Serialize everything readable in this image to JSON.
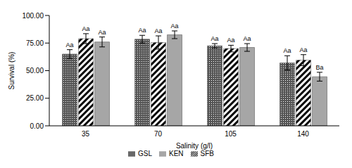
{
  "chart_data": {
    "type": "bar",
    "x_label": "Salinity (g/l)",
    "y_label": "Survival (%)",
    "categories": [
      "35",
      "70",
      "105",
      "140"
    ],
    "series": [
      {
        "name": "GSL",
        "color": "#555555",
        "values": [
          65,
          78.5,
          72.5,
          57
        ],
        "errors": [
          4,
          3.5,
          2,
          6.5
        ],
        "annotations": [
          "Aa",
          "Aa",
          "Aa",
          "Aa"
        ]
      },
      {
        "name": "SFB",
        "color": "#000000",
        "values": [
          79,
          75.5,
          70,
          59.5
        ],
        "errors": [
          4.5,
          6,
          3,
          5
        ],
        "annotations": [
          "Aa",
          "Aa",
          "Aa",
          "Aa"
        ]
      },
      {
        "name": "KEN",
        "color": "#a6a6a6",
        "values": [
          76,
          82.5,
          71,
          44.5
        ],
        "errors": [
          4.5,
          3.5,
          3.5,
          4
        ],
        "annotations": [
          "Aa",
          "Aa",
          "Aa",
          "Ba"
        ]
      }
    ],
    "ylim": [
      0,
      100
    ],
    "yticks": [
      {
        "value": 0,
        "label": "0.00"
      },
      {
        "value": 25,
        "label": "25.00"
      },
      {
        "value": 50,
        "label": "50.00"
      },
      {
        "value": 75,
        "label": "75.00"
      },
      {
        "value": 100,
        "label": "100.00"
      }
    ],
    "grid": false,
    "legend": "bottom"
  }
}
